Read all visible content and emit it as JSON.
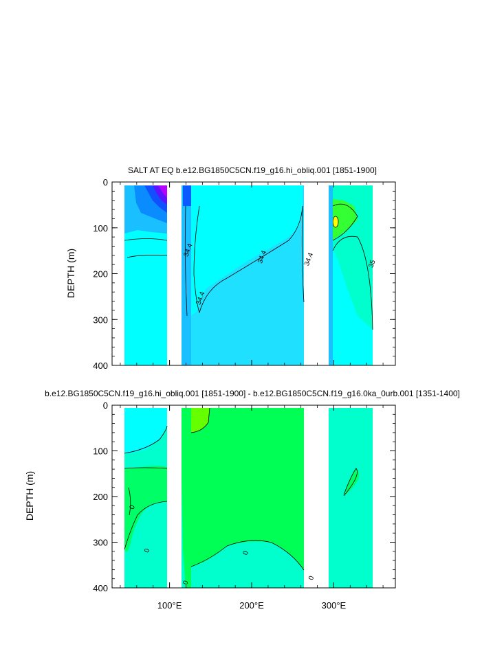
{
  "chart_data": [
    {
      "type": "heatmap",
      "title": "SALT AT EQ b.e12.BG1850C5CN.f19_g16.hi_obliq.001 [1851-1900]",
      "ylabel": "DEPTH (m)",
      "xlim": [
        30,
        375
      ],
      "ylim": [
        0,
        400
      ],
      "y_inverted": true,
      "y_ticks": [
        "0",
        "100",
        "200",
        "300",
        "400"
      ],
      "x_ticks": [],
      "contour_labels": [
        {
          "text": "34.4",
          "lon": 125,
          "depth": 150
        },
        {
          "text": "34.4",
          "lon": 215,
          "depth": 165
        },
        {
          "text": "34.4",
          "lon": 272,
          "depth": 170
        },
        {
          "text": "34.4",
          "lon": 140,
          "depth": 255
        },
        {
          "text": "35",
          "lon": 349,
          "depth": 180
        }
      ]
    },
    {
      "type": "heatmap",
      "title": "b.e12.BG1850C5CN.f19_g16.hi_obliq.001 [1851-1900] - b.e12.BG1850C5CN.f19_g16.0ka_0urb.001 [1351-1400]",
      "ylabel": "DEPTH (m)",
      "xlim": [
        30,
        375
      ],
      "ylim": [
        0,
        400
      ],
      "y_inverted": true,
      "y_ticks": [
        "0",
        "100",
        "200",
        "300",
        "400"
      ],
      "x_ticks": [
        "100°E",
        "200°E",
        "300°E"
      ],
      "contour_labels": [
        {
          "text": "0",
          "lon": 57,
          "depth": 225
        },
        {
          "text": "0",
          "lon": 75,
          "depth": 320
        },
        {
          "text": "0",
          "lon": 122,
          "depth": 390
        },
        {
          "text": "0",
          "lon": 195,
          "depth": 325
        },
        {
          "text": "0",
          "lon": 275,
          "depth": 380
        }
      ]
    }
  ]
}
